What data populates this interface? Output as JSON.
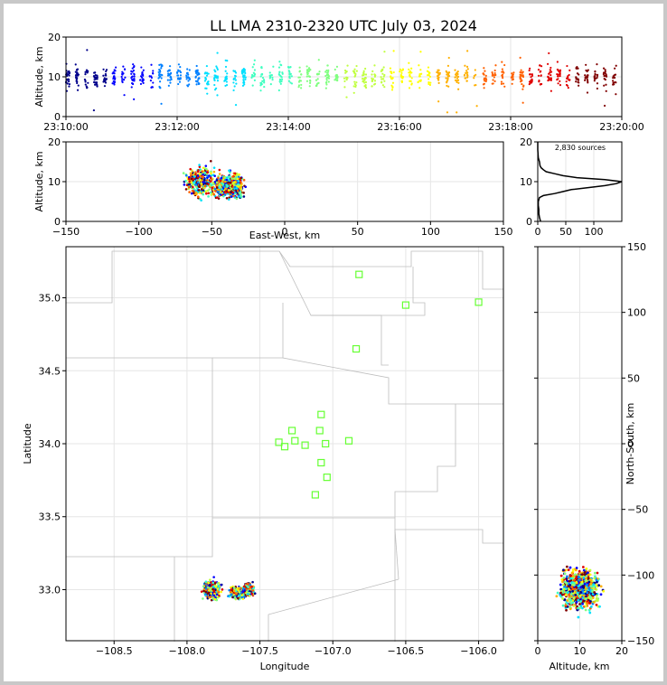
{
  "title": "LL LMA 2310-2320 UTC July 03, 2024",
  "source_count": "2,830 sources",
  "colors": {
    "stations": "#66ff33",
    "counties": "#bdbdbd",
    "colormap": [
      "#00008b",
      "#0000ff",
      "#0080ff",
      "#00e0ff",
      "#40ffc0",
      "#80ff80",
      "#c0ff40",
      "#ffff00",
      "#ffb000",
      "#ff6000",
      "#e00000",
      "#800000"
    ]
  },
  "chart_data": [
    {
      "panel": "time-height",
      "type": "scatter",
      "xlabel": "",
      "ylabel": "Altitude, km",
      "xticks": [
        "23:10:00",
        "23:12:00",
        "23:14:00",
        "23:16:00",
        "23:18:00",
        "23:20:00"
      ],
      "xlim": [
        "23:10:00",
        "23:20:00"
      ],
      "ylim": [
        0,
        20
      ],
      "yticks": [
        0,
        10,
        20
      ],
      "series_summary": {
        "median_altitude_km": 10,
        "spread_km": [
          7,
          13
        ],
        "color_by": "time"
      }
    },
    {
      "panel": "east-west-height",
      "type": "scatter",
      "xlabel": "East-West, km",
      "ylabel": "Altitude, km",
      "xlim": [
        -150,
        150
      ],
      "xticks": [
        -150,
        -100,
        -50,
        0,
        50,
        100,
        150
      ],
      "ylim": [
        0,
        20
      ],
      "yticks": [
        0,
        10,
        20
      ],
      "clusters": [
        {
          "x_center": -58,
          "x_spread": 9,
          "y_center": 10,
          "y_spread": 3
        },
        {
          "x_center": -42,
          "x_spread": 8,
          "y_center": 9,
          "y_spread": 2.5
        },
        {
          "x_center": -34,
          "x_spread": 6,
          "y_center": 9,
          "y_spread": 2.5
        }
      ]
    },
    {
      "panel": "altitude-histogram",
      "type": "line",
      "xlim": [
        0,
        150
      ],
      "xticks": [
        0,
        50,
        100
      ],
      "ylim": [
        0,
        20
      ],
      "yticks": [
        0,
        10,
        20
      ],
      "altitude": [
        0,
        1,
        2,
        3,
        4,
        5,
        6,
        6.5,
        7,
        7.5,
        8,
        8.5,
        9,
        9.5,
        10,
        10.5,
        11,
        11.5,
        12,
        12.5,
        13,
        13.5,
        14,
        15,
        16,
        18,
        20
      ],
      "count": [
        5,
        3,
        2,
        2,
        1,
        1,
        3,
        10,
        30,
        45,
        60,
        90,
        120,
        140,
        150,
        120,
        70,
        45,
        30,
        15,
        10,
        6,
        4,
        3,
        1,
        0,
        0
      ]
    },
    {
      "panel": "plan-view",
      "type": "scatter",
      "xlabel": "Longitude",
      "ylabel": "Latitude",
      "xlim": [
        -108.83,
        -105.83
      ],
      "xticks": [
        -108.5,
        -108.0,
        -107.5,
        -107.0,
        -106.5,
        -106.0
      ],
      "ylim": [
        32.65,
        35.35
      ],
      "yticks": [
        33.0,
        33.5,
        34.0,
        34.5,
        35.0
      ],
      "stations": [
        {
          "lon": -106.82,
          "lat": 35.16
        },
        {
          "lon": -106.5,
          "lat": 34.95
        },
        {
          "lon": -106.0,
          "lat": 34.97
        },
        {
          "lon": -106.84,
          "lat": 34.65
        },
        {
          "lon": -107.08,
          "lat": 34.2
        },
        {
          "lon": -107.28,
          "lat": 34.09
        },
        {
          "lon": -107.09,
          "lat": 34.09
        },
        {
          "lon": -107.37,
          "lat": 34.01
        },
        {
          "lon": -107.26,
          "lat": 34.02
        },
        {
          "lon": -107.33,
          "lat": 33.98
        },
        {
          "lon": -107.19,
          "lat": 33.99
        },
        {
          "lon": -107.05,
          "lat": 34.0
        },
        {
          "lon": -106.89,
          "lat": 34.02
        },
        {
          "lon": -107.08,
          "lat": 33.87
        },
        {
          "lon": -107.04,
          "lat": 33.77
        },
        {
          "lon": -107.12,
          "lat": 33.65
        }
      ],
      "clusters": [
        {
          "lon_center": -107.83,
          "lon_spread": 0.05,
          "lat_center": 33.0,
          "lat_spread": 0.05
        },
        {
          "lon_center": -107.65,
          "lon_spread": 0.05,
          "lat_center": 32.98,
          "lat_spread": 0.03
        },
        {
          "lon_center": -107.58,
          "lon_spread": 0.03,
          "lat_center": 33.0,
          "lat_spread": 0.03
        }
      ]
    },
    {
      "panel": "north-south-height",
      "type": "scatter",
      "xlabel": "Altitude, km",
      "ylabel": "North-South, km",
      "xlim": [
        0,
        20
      ],
      "xticks": [
        0,
        10,
        20
      ],
      "ylim": [
        -150,
        150
      ],
      "yticks": [
        -150,
        -100,
        -50,
        0,
        50,
        100,
        150
      ],
      "clusters": [
        {
          "x_center": 10,
          "x_spread": 2.5,
          "y_center": -110,
          "y_spread": 7
        }
      ]
    }
  ]
}
